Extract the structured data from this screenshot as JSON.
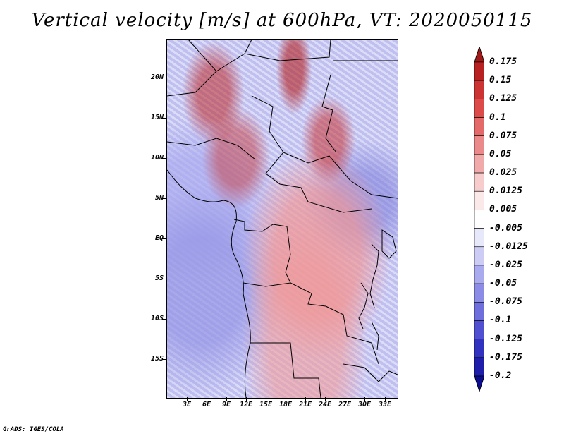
{
  "title": "Vertical velocity [m/s] at 600hPa, VT: 2020050115",
  "y_axis_labels": [
    "20N",
    "15N",
    "10N",
    "5N",
    "EQ",
    "5S",
    "10S",
    "15S"
  ],
  "x_axis_labels": [
    "3E",
    "6E",
    "9E",
    "12E",
    "15E",
    "18E",
    "21E",
    "24E",
    "27E",
    "30E",
    "33E"
  ],
  "colorbar": {
    "labels": [
      "0.175",
      "0.15",
      "0.125",
      "0.1",
      "0.075",
      "0.05",
      "0.025",
      "0.0125",
      "0.005",
      "-0.005",
      "-0.0125",
      "-0.025",
      "-0.05",
      "-0.075",
      "-0.1",
      "-0.125",
      "-0.175",
      "-0.2"
    ],
    "colors": [
      "#a01818",
      "#b82222",
      "#cc3333",
      "#dd4a4a",
      "#e46a6a",
      "#ea8a8a",
      "#f0aaaa",
      "#f6cccc",
      "#fbe8e8",
      "#ffffff",
      "#e8e8fb",
      "#ccccf5",
      "#aaaaee",
      "#8c8ce6",
      "#6e6edc",
      "#5050d0",
      "#3232c0",
      "#1e1eaa",
      "#0c0c90"
    ],
    "top_arrow_color": "#a01818",
    "bottom_arrow_color": "#0c0c90"
  },
  "footer": "GrADS: IGES/COLA"
}
